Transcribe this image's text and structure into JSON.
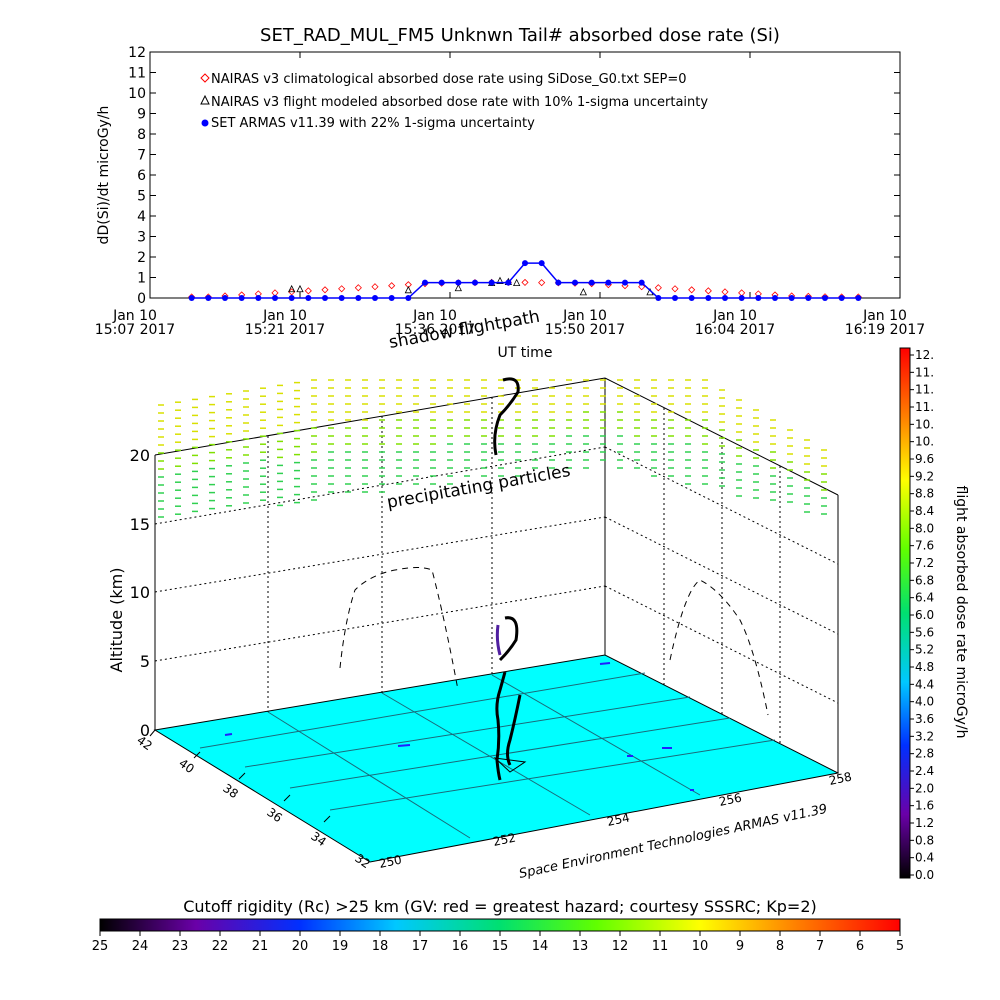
{
  "chart_data": [
    {
      "type": "line",
      "title": "SET_RAD_MUL_FM5 Unknwn Tail#  absorbed dose rate (Si)",
      "ylabel": "dD(Si)/dt microGy/h",
      "xlabel": "UT time",
      "ylim": [
        0,
        12
      ],
      "yticks": [
        "0",
        "1",
        "2",
        "3",
        "4",
        "5",
        "6",
        "7",
        "8",
        "9",
        "10",
        "11",
        "12"
      ],
      "xticks": [
        {
          "line1": "Jan 10",
          "line2": "15:07 2017"
        },
        {
          "line1": "Jan 10",
          "line2": "15:21 2017"
        },
        {
          "line1": "Jan 10",
          "line2": "15:36 2017"
        },
        {
          "line1": "Jan 10",
          "line2": "15:50 2017"
        },
        {
          "line1": "Jan 10",
          "line2": "16:04 2017"
        },
        {
          "line1": "Jan 10",
          "line2": "16:19 2017"
        }
      ],
      "legend": [
        {
          "label": "NAIRAS v3 climatological absorbed dose rate using SiDose_G0.txt SEP=0",
          "marker": "diamond",
          "color": "#ff0000"
        },
        {
          "label": "NAIRAS v3 flight modeled absorbed dose rate with 10% 1-sigma uncertainty",
          "marker": "triangle",
          "color": "#000000"
        },
        {
          "label": "SET ARMAS v11.39 with 22% 1-sigma uncertainty",
          "marker": "dot",
          "color": "#0000ff"
        }
      ],
      "legend_position": "top-left",
      "series": [
        {
          "name": "NAIRAS v3 climatological absorbed dose rate using SiDose_G0.txt SEP=0",
          "color": "#ff0000",
          "x_minutes": [
            5,
            7,
            9,
            11,
            13,
            15,
            17,
            19,
            21,
            23,
            25,
            27,
            29,
            31,
            33,
            35,
            37,
            39,
            41,
            43,
            45,
            47,
            49,
            51,
            53,
            55,
            57,
            59,
            61,
            63,
            65,
            67,
            69,
            71,
            73,
            75,
            77,
            79,
            81,
            83,
            85
          ],
          "values": [
            0.05,
            0.05,
            0.1,
            0.15,
            0.2,
            0.25,
            0.3,
            0.35,
            0.4,
            0.45,
            0.5,
            0.55,
            0.6,
            0.65,
            0.7,
            0.72,
            0.74,
            0.75,
            0.76,
            0.76,
            0.76,
            0.75,
            0.74,
            0.72,
            0.7,
            0.65,
            0.6,
            0.55,
            0.5,
            0.45,
            0.4,
            0.35,
            0.3,
            0.25,
            0.2,
            0.15,
            0.1,
            0.08,
            0.06,
            0.05,
            0.05
          ]
        },
        {
          "name": "NAIRAS v3 flight modeled absorbed dose rate with 10% 1-sigma uncertainty",
          "color": "#000000",
          "x_minutes": [
            17,
            18,
            31,
            37,
            41,
            42,
            43,
            44,
            52,
            60
          ],
          "values": [
            0.45,
            0.45,
            0.4,
            0.5,
            0.75,
            0.85,
            0.8,
            0.75,
            0.3,
            0.3
          ]
        },
        {
          "name": "SET ARMAS v11.39 with 22% 1-sigma uncertainty",
          "color": "#0000ff",
          "x_minutes": [
            5,
            7,
            9,
            11,
            13,
            15,
            17,
            19,
            21,
            23,
            25,
            27,
            29,
            31,
            33,
            35,
            37,
            39,
            41,
            43,
            45,
            47,
            49,
            51,
            53,
            55,
            57,
            59,
            61,
            63,
            65,
            67,
            69,
            71,
            73,
            75,
            77,
            79,
            81,
            83,
            85
          ],
          "values": [
            0,
            0,
            0,
            0,
            0,
            0,
            0,
            0,
            0,
            0,
            0,
            0,
            0,
            0,
            0.75,
            0.75,
            0.75,
            0.75,
            0.75,
            0.75,
            1.7,
            1.7,
            0.75,
            0.75,
            0.75,
            0.75,
            0.75,
            0.75,
            0,
            0,
            0,
            0,
            0,
            0,
            0,
            0,
            0,
            0,
            0,
            0,
            0
          ]
        }
      ]
    },
    {
      "type": "scatter",
      "zlabel": "Altitude (km)",
      "zticks": [
        "0",
        "5",
        "10",
        "15",
        "20"
      ],
      "ylabel_ticks": [
        "42",
        "40",
        "38",
        "36",
        "34",
        "32"
      ],
      "xlabel_ticks": [
        "250",
        "252",
        "254",
        "256",
        "258"
      ],
      "annotations": [
        "shadow flightpath",
        "precipitating particles"
      ],
      "credit": "Space Environment Technologies ARMAS v11.39",
      "floor_color": "#00ffff",
      "colorbar": {
        "label": "flight absorbed dose rate microGy/h",
        "ticks": [
          "0.0",
          "0.4",
          "0.8",
          "1.2",
          "1.6",
          "2.0",
          "2.4",
          "2.8",
          "3.2",
          "3.6",
          "4.0",
          "4.4",
          "4.8",
          "5.2",
          "5.6",
          "6.0",
          "6.4",
          "6.8",
          "7.2",
          "7.6",
          "8.0",
          "8.4",
          "8.8",
          "9.2",
          "9.6",
          "10.",
          "10.",
          "11.",
          "11.",
          "11.",
          "12."
        ]
      }
    },
    {
      "type": "heatmap",
      "title": "Cutoff rigidity (Rc) >25 km (GV: red = greatest hazard; courtesy SSSRC; Kp=2)",
      "ticks": [
        "25",
        "24",
        "23",
        "22",
        "21",
        "20",
        "19",
        "18",
        "17",
        "16",
        "15",
        "14",
        "13",
        "12",
        "11",
        "10",
        "9",
        "8",
        "7",
        "6",
        "5"
      ]
    }
  ]
}
